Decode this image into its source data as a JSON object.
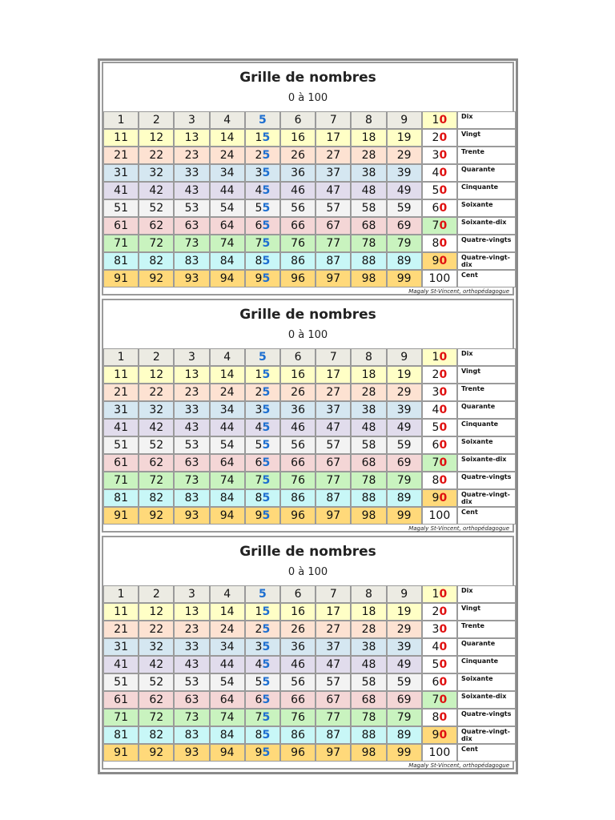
{
  "cards": [
    {
      "title": "Grille de nombres",
      "subtitle": "0 à 100",
      "rows": [
        [
          1,
          2,
          3,
          4,
          5,
          6,
          7,
          8,
          9,
          10
        ],
        [
          11,
          12,
          13,
          14,
          15,
          16,
          17,
          18,
          19,
          20
        ],
        [
          21,
          22,
          23,
          24,
          25,
          26,
          27,
          28,
          29,
          30
        ],
        [
          31,
          32,
          33,
          34,
          35,
          36,
          37,
          38,
          39,
          40
        ],
        [
          41,
          42,
          43,
          44,
          45,
          46,
          47,
          48,
          49,
          50
        ],
        [
          51,
          52,
          53,
          54,
          55,
          56,
          57,
          58,
          59,
          60
        ],
        [
          61,
          62,
          63,
          64,
          65,
          66,
          67,
          68,
          69,
          70
        ],
        [
          71,
          72,
          73,
          74,
          75,
          76,
          77,
          78,
          79,
          80
        ],
        [
          81,
          82,
          83,
          84,
          85,
          86,
          87,
          88,
          89,
          90
        ],
        [
          91,
          92,
          93,
          94,
          95,
          96,
          97,
          98,
          99,
          100
        ]
      ],
      "words": [
        "Dix",
        "Vingt",
        "Trente",
        "Quarante",
        "Cinquante",
        "Soixante",
        "Soixante-dix",
        "Quatre-vingts",
        "Quatre-vingt-dix",
        "Cent"
      ],
      "credit": "Magaly St-Vincent, orthopédagogue"
    },
    {
      "title": "Grille de nombres",
      "subtitle": "0 à 100",
      "rows": [
        [
          1,
          2,
          3,
          4,
          5,
          6,
          7,
          8,
          9,
          10
        ],
        [
          11,
          12,
          13,
          14,
          15,
          16,
          17,
          18,
          19,
          20
        ],
        [
          21,
          22,
          23,
          24,
          25,
          26,
          27,
          28,
          29,
          30
        ],
        [
          31,
          32,
          33,
          34,
          35,
          36,
          37,
          38,
          39,
          40
        ],
        [
          41,
          42,
          43,
          44,
          45,
          46,
          47,
          48,
          49,
          50
        ],
        [
          51,
          52,
          53,
          54,
          55,
          56,
          57,
          58,
          59,
          60
        ],
        [
          61,
          62,
          63,
          64,
          65,
          66,
          67,
          68,
          69,
          70
        ],
        [
          71,
          72,
          73,
          74,
          75,
          76,
          77,
          78,
          79,
          80
        ],
        [
          81,
          82,
          83,
          84,
          85,
          86,
          87,
          88,
          89,
          90
        ],
        [
          91,
          92,
          93,
          94,
          95,
          96,
          97,
          98,
          99,
          100
        ]
      ],
      "words": [
        "Dix",
        "Vingt",
        "Trente",
        "Quarante",
        "Cinquante",
        "Soixante",
        "Soixante-dix",
        "Quatre-vingts",
        "Quatre-vingt-dix",
        "Cent"
      ],
      "credit": "Magaly St-Vincent, orthopédagogue"
    },
    {
      "title": "Grille de nombres",
      "subtitle": "0 à 100",
      "rows": [
        [
          1,
          2,
          3,
          4,
          5,
          6,
          7,
          8,
          9,
          10
        ],
        [
          11,
          12,
          13,
          14,
          15,
          16,
          17,
          18,
          19,
          20
        ],
        [
          21,
          22,
          23,
          24,
          25,
          26,
          27,
          28,
          29,
          30
        ],
        [
          31,
          32,
          33,
          34,
          35,
          36,
          37,
          38,
          39,
          40
        ],
        [
          41,
          42,
          43,
          44,
          45,
          46,
          47,
          48,
          49,
          50
        ],
        [
          51,
          52,
          53,
          54,
          55,
          56,
          57,
          58,
          59,
          60
        ],
        [
          61,
          62,
          63,
          64,
          65,
          66,
          67,
          68,
          69,
          70
        ],
        [
          71,
          72,
          73,
          74,
          75,
          76,
          77,
          78,
          79,
          80
        ],
        [
          81,
          82,
          83,
          84,
          85,
          86,
          87,
          88,
          89,
          90
        ],
        [
          91,
          92,
          93,
          94,
          95,
          96,
          97,
          98,
          99,
          100
        ]
      ],
      "words": [
        "Dix",
        "Vingt",
        "Trente",
        "Quarante",
        "Cinquante",
        "Soixante",
        "Soixante-dix",
        "Quatre-vingts",
        "Quatre-vingt-dix",
        "Cent"
      ],
      "credit": "Magaly St-Vincent, orthopédagogue"
    }
  ]
}
